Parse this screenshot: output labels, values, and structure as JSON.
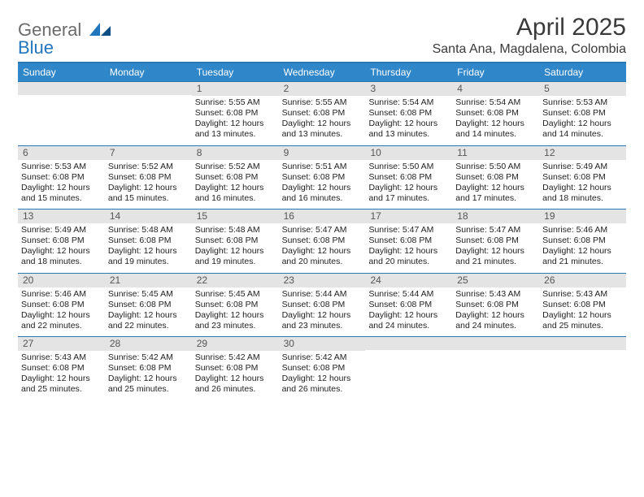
{
  "brand": {
    "part1": "General",
    "part2": "Blue"
  },
  "title": "April 2025",
  "location": "Santa Ana, Magdalena, Colombia",
  "colors": {
    "header_bar": "#2f86c8",
    "header_border": "#2878b6",
    "daynum_bg": "#e4e4e4",
    "text": "#333333",
    "logo_gray": "#6b6b6b",
    "logo_blue": "#2176bd",
    "background": "#ffffff"
  },
  "dow": [
    "Sunday",
    "Monday",
    "Tuesday",
    "Wednesday",
    "Thursday",
    "Friday",
    "Saturday"
  ],
  "weeks": [
    [
      null,
      null,
      {
        "n": "1",
        "sr": "Sunrise: 5:55 AM",
        "ss": "Sunset: 6:08 PM",
        "dl1": "Daylight: 12 hours",
        "dl2": "and 13 minutes."
      },
      {
        "n": "2",
        "sr": "Sunrise: 5:55 AM",
        "ss": "Sunset: 6:08 PM",
        "dl1": "Daylight: 12 hours",
        "dl2": "and 13 minutes."
      },
      {
        "n": "3",
        "sr": "Sunrise: 5:54 AM",
        "ss": "Sunset: 6:08 PM",
        "dl1": "Daylight: 12 hours",
        "dl2": "and 13 minutes."
      },
      {
        "n": "4",
        "sr": "Sunrise: 5:54 AM",
        "ss": "Sunset: 6:08 PM",
        "dl1": "Daylight: 12 hours",
        "dl2": "and 14 minutes."
      },
      {
        "n": "5",
        "sr": "Sunrise: 5:53 AM",
        "ss": "Sunset: 6:08 PM",
        "dl1": "Daylight: 12 hours",
        "dl2": "and 14 minutes."
      }
    ],
    [
      {
        "n": "6",
        "sr": "Sunrise: 5:53 AM",
        "ss": "Sunset: 6:08 PM",
        "dl1": "Daylight: 12 hours",
        "dl2": "and 15 minutes."
      },
      {
        "n": "7",
        "sr": "Sunrise: 5:52 AM",
        "ss": "Sunset: 6:08 PM",
        "dl1": "Daylight: 12 hours",
        "dl2": "and 15 minutes."
      },
      {
        "n": "8",
        "sr": "Sunrise: 5:52 AM",
        "ss": "Sunset: 6:08 PM",
        "dl1": "Daylight: 12 hours",
        "dl2": "and 16 minutes."
      },
      {
        "n": "9",
        "sr": "Sunrise: 5:51 AM",
        "ss": "Sunset: 6:08 PM",
        "dl1": "Daylight: 12 hours",
        "dl2": "and 16 minutes."
      },
      {
        "n": "10",
        "sr": "Sunrise: 5:50 AM",
        "ss": "Sunset: 6:08 PM",
        "dl1": "Daylight: 12 hours",
        "dl2": "and 17 minutes."
      },
      {
        "n": "11",
        "sr": "Sunrise: 5:50 AM",
        "ss": "Sunset: 6:08 PM",
        "dl1": "Daylight: 12 hours",
        "dl2": "and 17 minutes."
      },
      {
        "n": "12",
        "sr": "Sunrise: 5:49 AM",
        "ss": "Sunset: 6:08 PM",
        "dl1": "Daylight: 12 hours",
        "dl2": "and 18 minutes."
      }
    ],
    [
      {
        "n": "13",
        "sr": "Sunrise: 5:49 AM",
        "ss": "Sunset: 6:08 PM",
        "dl1": "Daylight: 12 hours",
        "dl2": "and 18 minutes."
      },
      {
        "n": "14",
        "sr": "Sunrise: 5:48 AM",
        "ss": "Sunset: 6:08 PM",
        "dl1": "Daylight: 12 hours",
        "dl2": "and 19 minutes."
      },
      {
        "n": "15",
        "sr": "Sunrise: 5:48 AM",
        "ss": "Sunset: 6:08 PM",
        "dl1": "Daylight: 12 hours",
        "dl2": "and 19 minutes."
      },
      {
        "n": "16",
        "sr": "Sunrise: 5:47 AM",
        "ss": "Sunset: 6:08 PM",
        "dl1": "Daylight: 12 hours",
        "dl2": "and 20 minutes."
      },
      {
        "n": "17",
        "sr": "Sunrise: 5:47 AM",
        "ss": "Sunset: 6:08 PM",
        "dl1": "Daylight: 12 hours",
        "dl2": "and 20 minutes."
      },
      {
        "n": "18",
        "sr": "Sunrise: 5:47 AM",
        "ss": "Sunset: 6:08 PM",
        "dl1": "Daylight: 12 hours",
        "dl2": "and 21 minutes."
      },
      {
        "n": "19",
        "sr": "Sunrise: 5:46 AM",
        "ss": "Sunset: 6:08 PM",
        "dl1": "Daylight: 12 hours",
        "dl2": "and 21 minutes."
      }
    ],
    [
      {
        "n": "20",
        "sr": "Sunrise: 5:46 AM",
        "ss": "Sunset: 6:08 PM",
        "dl1": "Daylight: 12 hours",
        "dl2": "and 22 minutes."
      },
      {
        "n": "21",
        "sr": "Sunrise: 5:45 AM",
        "ss": "Sunset: 6:08 PM",
        "dl1": "Daylight: 12 hours",
        "dl2": "and 22 minutes."
      },
      {
        "n": "22",
        "sr": "Sunrise: 5:45 AM",
        "ss": "Sunset: 6:08 PM",
        "dl1": "Daylight: 12 hours",
        "dl2": "and 23 minutes."
      },
      {
        "n": "23",
        "sr": "Sunrise: 5:44 AM",
        "ss": "Sunset: 6:08 PM",
        "dl1": "Daylight: 12 hours",
        "dl2": "and 23 minutes."
      },
      {
        "n": "24",
        "sr": "Sunrise: 5:44 AM",
        "ss": "Sunset: 6:08 PM",
        "dl1": "Daylight: 12 hours",
        "dl2": "and 24 minutes."
      },
      {
        "n": "25",
        "sr": "Sunrise: 5:43 AM",
        "ss": "Sunset: 6:08 PM",
        "dl1": "Daylight: 12 hours",
        "dl2": "and 24 minutes."
      },
      {
        "n": "26",
        "sr": "Sunrise: 5:43 AM",
        "ss": "Sunset: 6:08 PM",
        "dl1": "Daylight: 12 hours",
        "dl2": "and 25 minutes."
      }
    ],
    [
      {
        "n": "27",
        "sr": "Sunrise: 5:43 AM",
        "ss": "Sunset: 6:08 PM",
        "dl1": "Daylight: 12 hours",
        "dl2": "and 25 minutes."
      },
      {
        "n": "28",
        "sr": "Sunrise: 5:42 AM",
        "ss": "Sunset: 6:08 PM",
        "dl1": "Daylight: 12 hours",
        "dl2": "and 25 minutes."
      },
      {
        "n": "29",
        "sr": "Sunrise: 5:42 AM",
        "ss": "Sunset: 6:08 PM",
        "dl1": "Daylight: 12 hours",
        "dl2": "and 26 minutes."
      },
      {
        "n": "30",
        "sr": "Sunrise: 5:42 AM",
        "ss": "Sunset: 6:08 PM",
        "dl1": "Daylight: 12 hours",
        "dl2": "and 26 minutes."
      },
      null,
      null,
      null
    ]
  ]
}
